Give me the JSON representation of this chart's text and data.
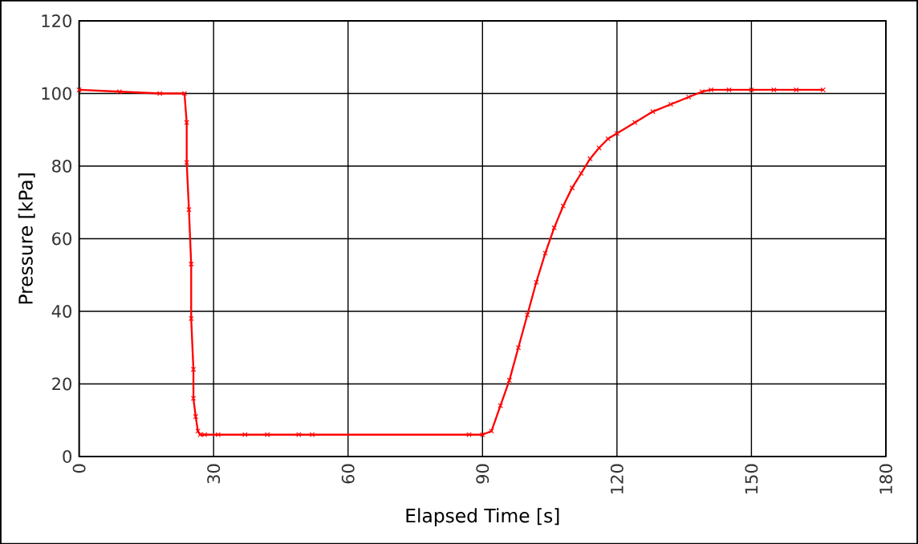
{
  "chart_data": {
    "type": "line",
    "xlabel": "Elapsed Time [s]",
    "ylabel": "Pressure [kPa]",
    "xlim": [
      0,
      180
    ],
    "xticks": [
      0,
      30,
      60,
      90,
      120,
      150,
      180
    ],
    "ylim": [
      0,
      120
    ],
    "yticks": [
      0,
      20,
      40,
      60,
      80,
      100,
      120
    ],
    "grid": true,
    "marker": "cross",
    "line_style": "solid",
    "series": [
      {
        "color": "#ff0000",
        "x": [
          0,
          9,
          18,
          23.5,
          24,
          24,
          24.5,
          25,
          25,
          25.5,
          25.5,
          26,
          26.5,
          27,
          28,
          31,
          37,
          42,
          49,
          52,
          87,
          90,
          92,
          94,
          96,
          98,
          100,
          102,
          104,
          106,
          108,
          110,
          112,
          114,
          116,
          118,
          120,
          124,
          128,
          132,
          136,
          139,
          141,
          145,
          150,
          155,
          160,
          166
        ],
        "values": [
          101,
          100.5,
          100,
          100,
          92,
          81,
          68,
          53,
          38,
          24,
          16,
          11,
          7,
          6,
          6,
          6,
          6,
          6,
          6,
          6,
          6,
          6,
          7,
          14,
          21,
          30,
          39,
          48,
          56,
          63,
          69,
          74,
          78,
          82,
          85,
          87.5,
          89,
          92,
          95,
          97,
          99,
          100.5,
          101,
          101,
          101,
          101,
          101,
          101
        ]
      }
    ]
  }
}
